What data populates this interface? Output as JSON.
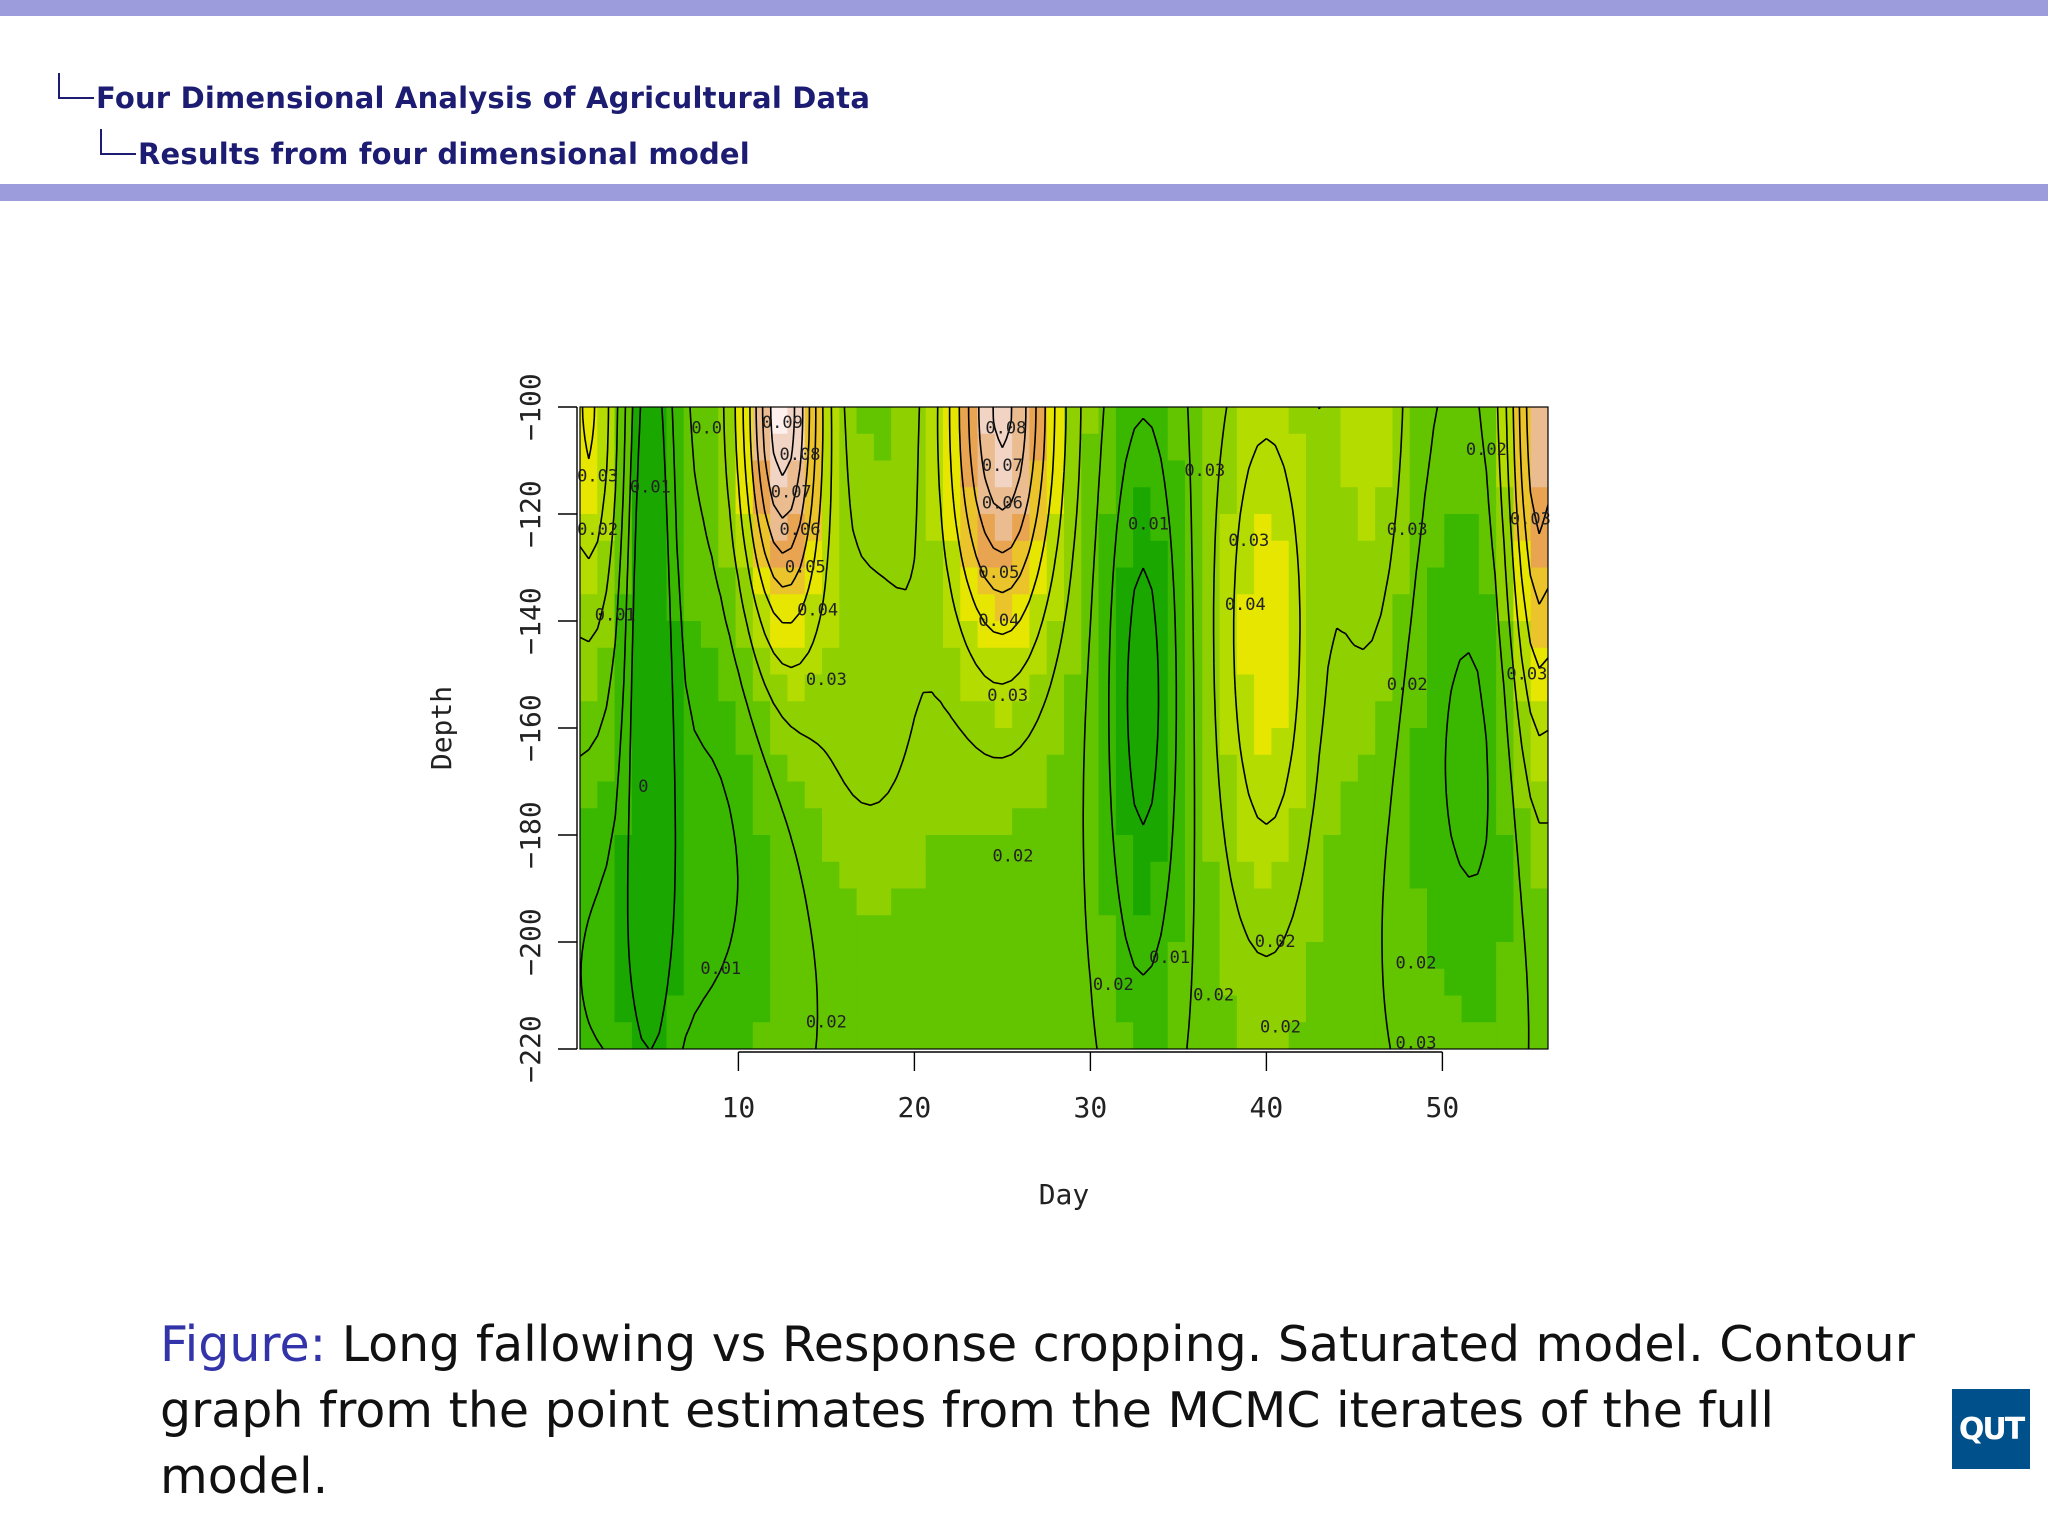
{
  "header": {
    "section": "Four Dimensional Analysis of Agricultural Data",
    "subsection": "Results from four dimensional model"
  },
  "theme": {
    "bar_color": "#9c9cdc",
    "heading_color": "#1c1c72",
    "figure_label_color": "#3333aa",
    "logo_color": "#00518b"
  },
  "chart_data": {
    "type": "heatmap",
    "xlabel": "Day",
    "ylabel": "Depth",
    "x_ticks": [
      10,
      20,
      30,
      40,
      50
    ],
    "y_ticks": [
      -100,
      -120,
      -140,
      -160,
      -180,
      -200,
      -220
    ],
    "xlim": [
      1,
      56
    ],
    "ylim": [
      -220,
      -100
    ],
    "legend": "none",
    "grid": false,
    "palette": [
      "#1aa700",
      "#3ab800",
      "#63c400",
      "#8fd000",
      "#b4dc00",
      "#e6e600",
      "#eac42a",
      "#e8a450",
      "#eabc90",
      "#f2d4c4",
      "#fff0ee"
    ],
    "contour_levels": [
      0.0,
      0.01,
      0.02,
      0.03,
      0.04,
      0.05,
      0.06,
      0.07,
      0.08,
      0.09
    ],
    "contour_labels": [
      {
        "text": "0.09",
        "x": 12.5,
        "y": -103
      },
      {
        "text": "0.08",
        "x": 13.5,
        "y": -109
      },
      {
        "text": "0.07",
        "x": 13.0,
        "y": -116
      },
      {
        "text": "0.06",
        "x": 13.5,
        "y": -123
      },
      {
        "text": "0.05",
        "x": 13.8,
        "y": -130
      },
      {
        "text": "0.04",
        "x": 14.5,
        "y": -138
      },
      {
        "text": "0.03",
        "x": 15.0,
        "y": -151
      },
      {
        "text": "0.08",
        "x": 25.2,
        "y": -104
      },
      {
        "text": "0.07",
        "x": 25.0,
        "y": -111
      },
      {
        "text": "0.06",
        "x": 25.0,
        "y": -118
      },
      {
        "text": "0.05",
        "x": 24.8,
        "y": -131
      },
      {
        "text": "0.04",
        "x": 24.8,
        "y": -140
      },
      {
        "text": "0.03",
        "x": 25.3,
        "y": -154
      },
      {
        "text": "0.03",
        "x": 2.0,
        "y": -113
      },
      {
        "text": "0.02",
        "x": 2.0,
        "y": -123
      },
      {
        "text": "0.01",
        "x": 3.0,
        "y": -139
      },
      {
        "text": "0.01",
        "x": 5.0,
        "y": -115
      },
      {
        "text": "0.01",
        "x": 9.0,
        "y": -205
      },
      {
        "text": "0.02",
        "x": 15.0,
        "y": -215
      },
      {
        "text": "0.02",
        "x": 31.3,
        "y": -208
      },
      {
        "text": "0.01",
        "x": 34.5,
        "y": -203
      },
      {
        "text": "0.02",
        "x": 37.0,
        "y": -210
      },
      {
        "text": "0.02",
        "x": 40.5,
        "y": -200
      },
      {
        "text": "0.02",
        "x": 48.5,
        "y": -204
      },
      {
        "text": "0.03",
        "x": 48.5,
        "y": -219
      },
      {
        "text": "0.02",
        "x": 48.0,
        "y": -152
      },
      {
        "text": "0.03",
        "x": 39.0,
        "y": -125
      },
      {
        "text": "0.03",
        "x": 36.5,
        "y": -112
      },
      {
        "text": "0.04",
        "x": 38.8,
        "y": -137
      },
      {
        "text": "0.03",
        "x": 48.0,
        "y": -123
      },
      {
        "text": "0.02",
        "x": 52.5,
        "y": -108
      },
      {
        "text": "0.02",
        "x": 25.6,
        "y": -184
      },
      {
        "text": "0.03",
        "x": 55.0,
        "y": -121
      },
      {
        "text": "0.03",
        "x": 54.8,
        "y": -150
      },
      {
        "text": "0.02",
        "x": 40.8,
        "y": -216
      },
      {
        "text": "0.0",
        "x": 8.2,
        "y": -104
      },
      {
        "text": "0",
        "x": 4.6,
        "y": -171
      },
      {
        "text": "0.01",
        "x": 33.3,
        "y": -122
      }
    ]
  },
  "caption": {
    "label": "Figure:",
    "text": " Long fallowing vs Response cropping. Saturated model. Contour graph from the point estimates from the MCMC iterates of the full model."
  },
  "logo": {
    "text": "QUT"
  }
}
